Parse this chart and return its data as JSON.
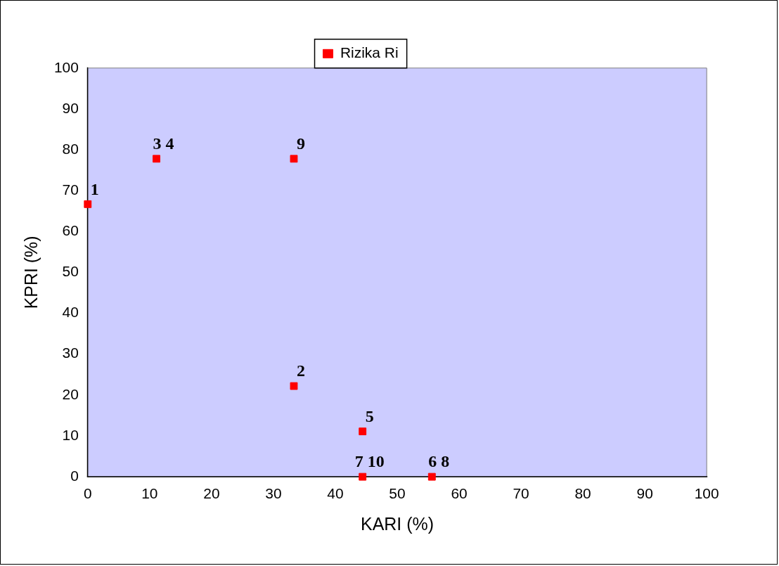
{
  "chart_data": {
    "type": "scatter",
    "xlabel": "KARI (%)",
    "ylabel": "KPRI (%)",
    "series": [
      {
        "name": "Rizika Ri",
        "color": "#ff0000",
        "x": [
          0,
          33.3,
          11.1,
          44.4,
          55.6,
          44.4,
          33.3
        ],
        "values": [
          66.7,
          22.2,
          77.8,
          11.1,
          0,
          0,
          77.8
        ]
      }
    ],
    "xlim": [
      0,
      100
    ],
    "xticks": [
      0,
      10,
      20,
      30,
      40,
      50,
      60,
      70,
      80,
      90,
      100
    ],
    "ylim": [
      0,
      100
    ],
    "yticks": [
      0,
      10,
      20,
      30,
      40,
      50,
      60,
      70,
      80,
      90,
      100
    ],
    "grid": false,
    "legend": "top",
    "marker": "square",
    "annotations": [
      {
        "text": "1",
        "x": 0,
        "y": 66.7
      },
      {
        "text": "2",
        "x": 33.3,
        "y": 22.2
      },
      {
        "text": "3 4",
        "x": 11.1,
        "y": 77.8
      },
      {
        "text": "5",
        "x": 44.4,
        "y": 11.1
      },
      {
        "text": "6 8",
        "x": 55.6,
        "y": 0
      },
      {
        "text": "7 10",
        "x": 44.4,
        "y": 0
      },
      {
        "text": "9",
        "x": 33.3,
        "y": 77.8
      }
    ]
  }
}
